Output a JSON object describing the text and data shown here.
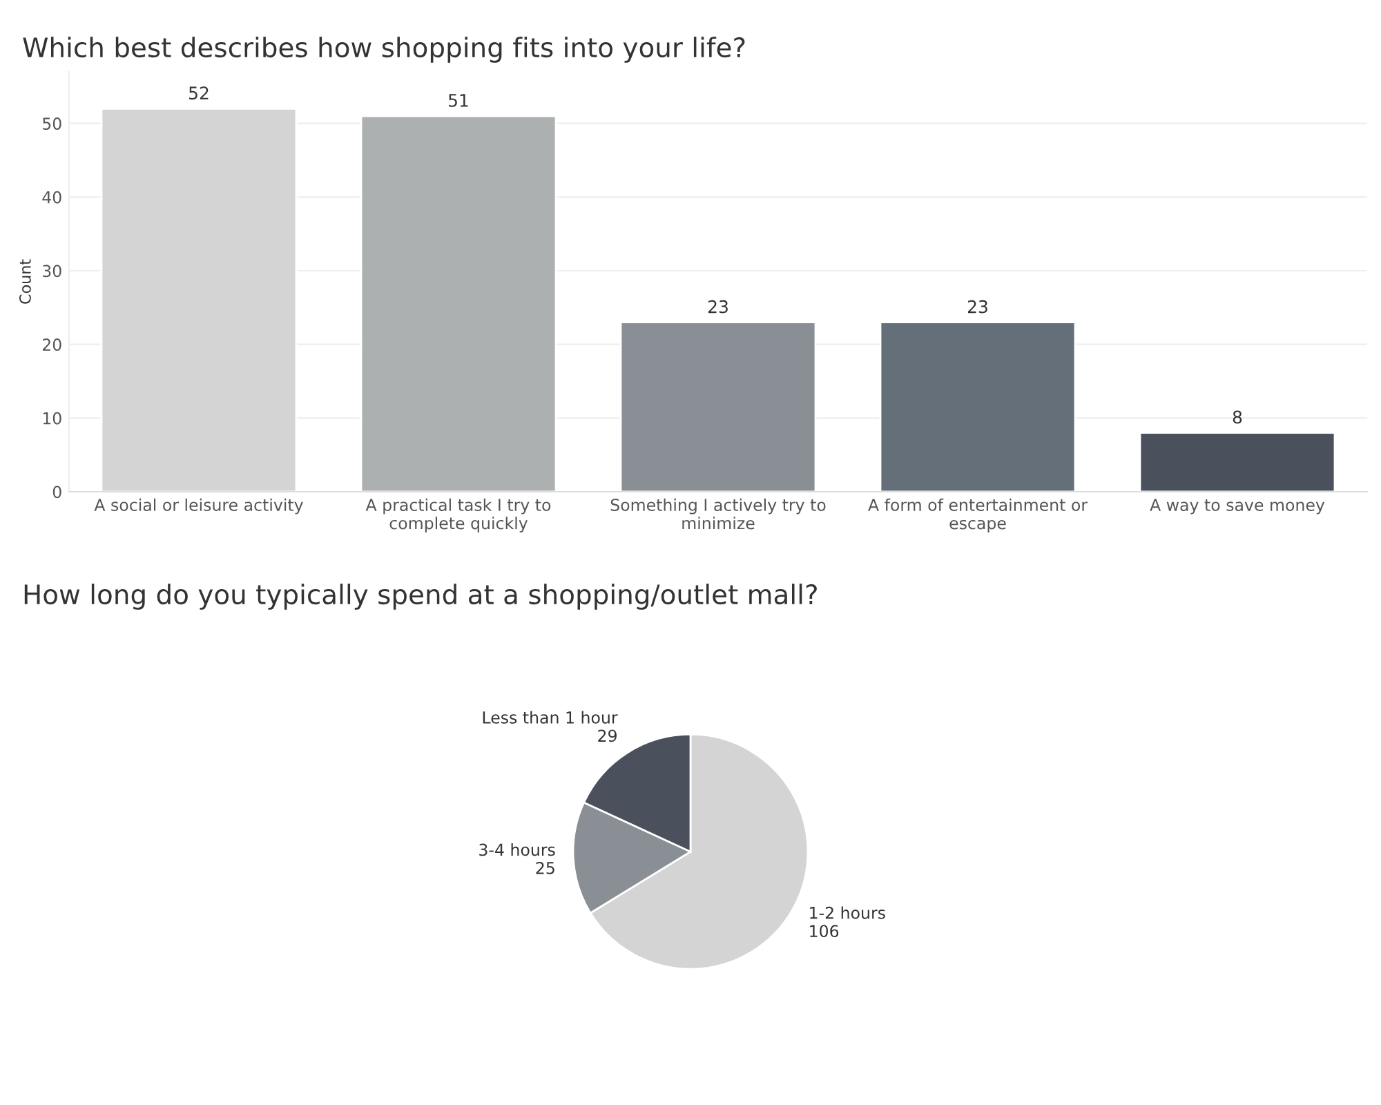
{
  "chart_data": [
    {
      "type": "bar",
      "title": "Which best describes how shopping fits into your life?",
      "ylabel": "Count",
      "categories": [
        "A social or leisure activity",
        "A practical task I try to\ncomplete quickly",
        "Something I actively try to\nminimize",
        "A form of entertainment or\nescape",
        "A way to save money"
      ],
      "values": [
        52,
        51,
        23,
        23,
        8
      ],
      "colors": [
        "#d4d4d4",
        "#adb0b1",
        "#898f95",
        "#656f79",
        "#4a505c"
      ],
      "ylim": [
        0,
        57
      ],
      "yticks": [
        0,
        10,
        20,
        30,
        40,
        50
      ],
      "grid": "y",
      "data_labels": true,
      "legend": false
    },
    {
      "type": "pie",
      "title": "How long do you typically spend at a shopping/outlet mall?",
      "categories": [
        "1-2 hours",
        "3-4 hours",
        "Less than 1 hour"
      ],
      "values": [
        106,
        25,
        29
      ],
      "colors": [
        "#d4d4d4",
        "#898f95",
        "#4a505c"
      ],
      "data_labels": true,
      "legend": false
    }
  ]
}
